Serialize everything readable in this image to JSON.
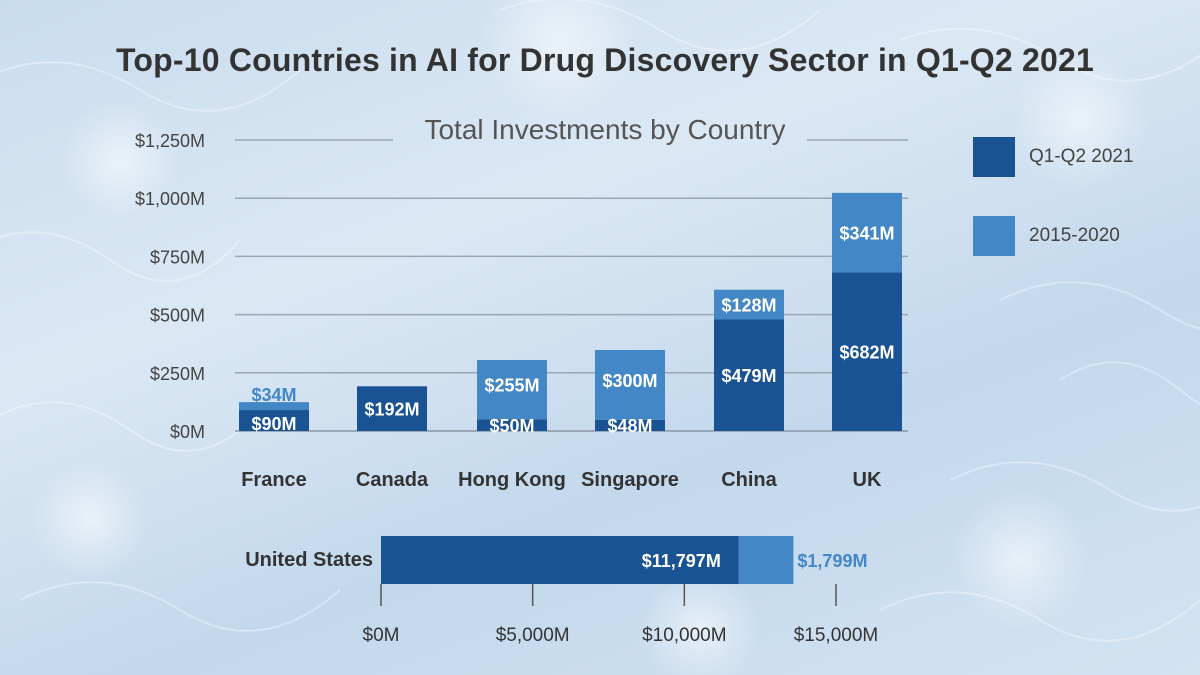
{
  "title": "Top-10 Countries in AI for Drug Discovery Sector in Q1-Q2 2021",
  "subtitle": "Total Investments by Country",
  "legend": [
    {
      "label": "Q1-Q2 2021",
      "color": "#1a5394"
    },
    {
      "label": "2015-2020",
      "color": "#4487c6"
    }
  ],
  "chart_data": [
    {
      "type": "bar",
      "stacked": true,
      "orientation": "vertical",
      "title": "Top-10 Countries in AI for Drug Discovery Sector in Q1-Q2 2021",
      "subtitle": "Total Investments by Country",
      "categories": [
        "France",
        "Canada",
        "Hong Kong",
        "Singapore",
        "China",
        "UK"
      ],
      "series": [
        {
          "name": "Q1-Q2 2021",
          "color": "#1a5394",
          "values": [
            90,
            192,
            50,
            48,
            479,
            682
          ],
          "labels": [
            "$90M",
            "$192M",
            "$50M",
            "$48M",
            "$479M",
            "$682M"
          ]
        },
        {
          "name": "2015-2020",
          "color": "#4487c6",
          "values": [
            34,
            0,
            255,
            300,
            128,
            341
          ],
          "labels": [
            "$34M",
            "",
            "$255M",
            "$300M",
            "$128M",
            "$341M"
          ]
        }
      ],
      "yticks": [
        "$0M",
        "$250M",
        "$500M",
        "$750M",
        "$1,000M",
        "$1,250M"
      ],
      "ylim": [
        0,
        1250
      ],
      "grid": true,
      "legend_position": "right"
    },
    {
      "type": "bar",
      "stacked": true,
      "orientation": "horizontal",
      "categories": [
        "United States"
      ],
      "series": [
        {
          "name": "Q1-Q2 2021",
          "color": "#1a5394",
          "values": [
            11797
          ],
          "labels": [
            "$11,797M"
          ]
        },
        {
          "name": "2015-2020",
          "color": "#4487c6",
          "values": [
            1799
          ],
          "labels": [
            "$1,799M"
          ]
        }
      ],
      "xticks": [
        "$0M",
        "$5,000M",
        "$10,000M",
        "$15,000M"
      ],
      "xlim": [
        0,
        15000
      ]
    }
  ]
}
